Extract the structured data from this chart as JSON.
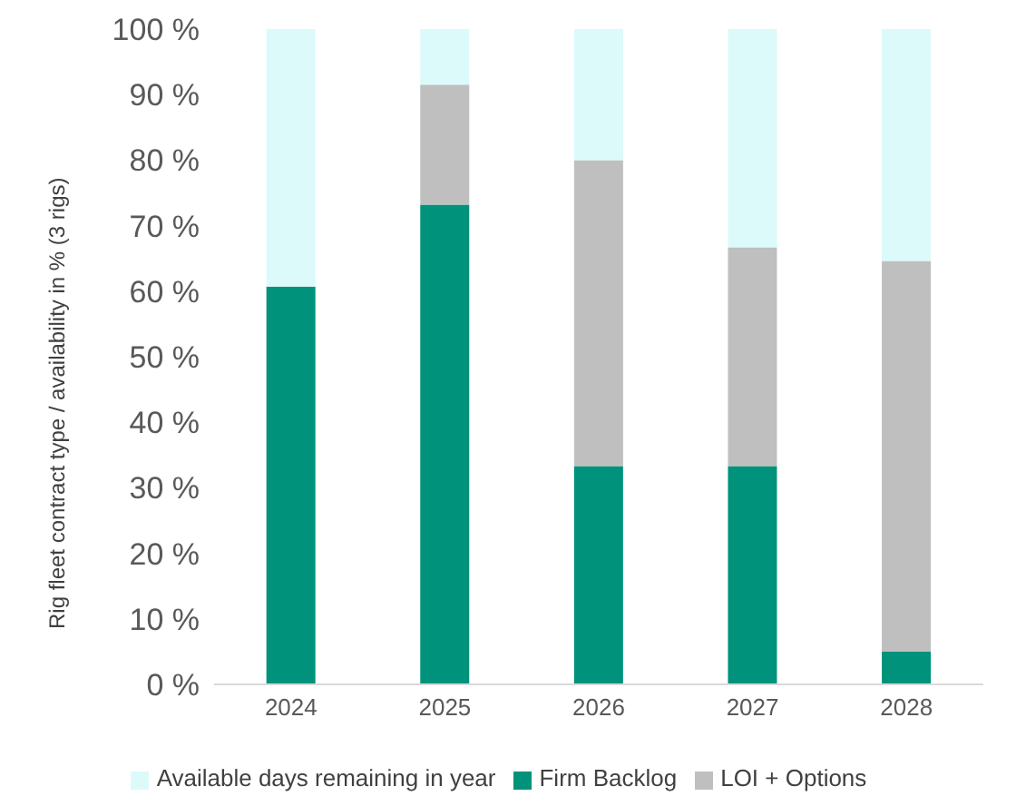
{
  "chart_data": {
    "type": "bar",
    "stacked": true,
    "ylabel": "Rig fleet contract type / availability in % (3 rigs)",
    "categories": [
      "2024",
      "2025",
      "2026",
      "2027",
      "2028"
    ],
    "series": [
      {
        "name": "Firm Backlog",
        "color": "#00927b",
        "values": [
          60.7,
          73.2,
          33.3,
          33.3,
          5
        ]
      },
      {
        "name": "LOI + Options",
        "color": "#bfbfbf",
        "values": [
          0,
          18.3,
          46.7,
          33.4,
          59.6
        ]
      },
      {
        "name": "Available days remaining in year",
        "color": "#dcfafa",
        "values": [
          39.3,
          8.5,
          20,
          33.3,
          35.4
        ]
      }
    ],
    "ylim": [
      0,
      100
    ],
    "yticks": [
      {
        "value": 0,
        "label": "0 %"
      },
      {
        "value": 10,
        "label": "10 %"
      },
      {
        "value": 20,
        "label": "20 %"
      },
      {
        "value": 30,
        "label": "30 %"
      },
      {
        "value": 40,
        "label": "40 %"
      },
      {
        "value": 50,
        "label": "50 %"
      },
      {
        "value": 60,
        "label": "60 %"
      },
      {
        "value": 70,
        "label": "70 %"
      },
      {
        "value": 80,
        "label": "80 %"
      },
      {
        "value": 90,
        "label": "90 %"
      },
      {
        "value": 100,
        "label": "100 %"
      }
    ],
    "grid": false,
    "legend": "bottom"
  }
}
